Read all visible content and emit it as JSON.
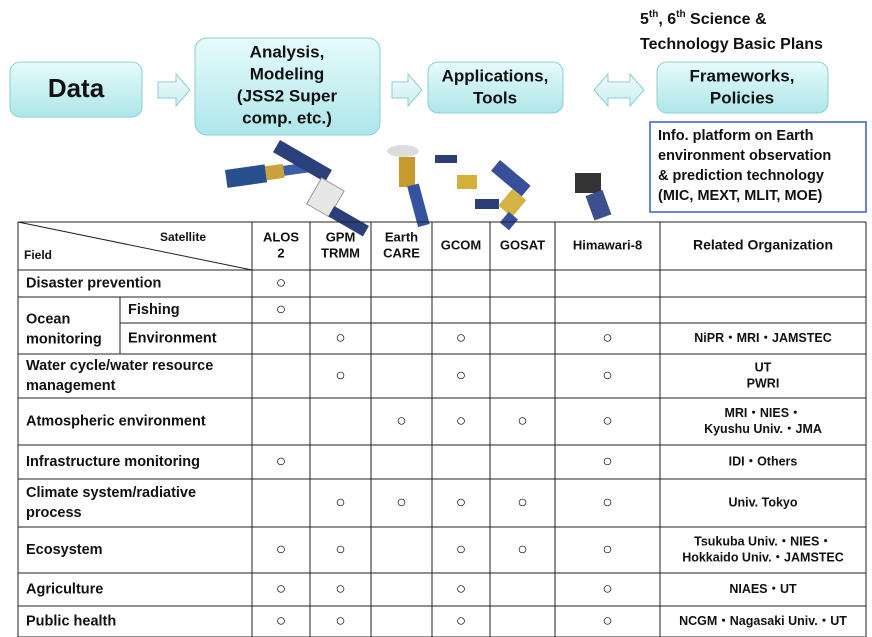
{
  "flow": [
    {
      "lines": [
        "Data"
      ]
    },
    {
      "lines": [
        "Analysis,",
        "Modeling",
        "(JSS2 Super",
        "comp. etc.)"
      ]
    },
    {
      "lines": [
        "Applications,",
        "Tools"
      ]
    },
    {
      "lines": [
        "Frameworks,",
        "Policies"
      ]
    }
  ],
  "plans": {
    "parts": [
      "5",
      "th",
      ", 6",
      "th",
      " Science &"
    ],
    "line2": "Technology Basic Plans"
  },
  "platform": {
    "lines": [
      "Info. platform on Earth",
      "environment observation",
      "& prediction technology",
      "(MIC, MEXT, MLIT, MOE)"
    ]
  },
  "table": {
    "header": {
      "satellite": "Satellite",
      "field": "Field",
      "columns": [
        [
          "ALOS",
          "2"
        ],
        [
          "GPM",
          "TRMM"
        ],
        [
          "Earth",
          "CARE"
        ],
        [
          "GCOM"
        ],
        [
          "GOSAT"
        ],
        [
          "Himawari-8"
        ]
      ],
      "org": "Related Organization"
    },
    "rows": [
      {
        "field": [
          "Disaster prevention"
        ],
        "marks": [
          "○",
          null,
          null,
          null,
          null,
          null
        ],
        "org": null
      },
      {
        "field": [
          "Ocean",
          "monitoring"
        ],
        "subrows": [
          {
            "subfield": "Fishing",
            "marks": [
              "○",
              null,
              null,
              null,
              null,
              null
            ],
            "org": null
          },
          {
            "subfield": "Environment",
            "marks": [
              null,
              "○",
              null,
              "○",
              null,
              "○"
            ],
            "org": [
              "NiPR・MRI・JAMSTEC"
            ]
          }
        ]
      },
      {
        "field": [
          "Water cycle/water resource",
          "management"
        ],
        "marks": [
          null,
          "○",
          null,
          "○",
          null,
          "○"
        ],
        "org": [
          "UT",
          "PWRI"
        ]
      },
      {
        "field": [
          "Atmospheric environment"
        ],
        "marks": [
          null,
          null,
          "○",
          "○",
          "○",
          "○"
        ],
        "org": [
          "MRI・NIES・",
          "Kyushu Univ.・JMA"
        ]
      },
      {
        "field": [
          "Infrastructure monitoring"
        ],
        "marks": [
          "○",
          null,
          null,
          null,
          null,
          "○"
        ],
        "org": [
          "IDI・Others"
        ]
      },
      {
        "field": [
          "Climate system/radiative",
          "process"
        ],
        "marks": [
          null,
          "○",
          "○",
          "○",
          "○",
          "○"
        ],
        "org": [
          "Univ. Tokyo"
        ]
      },
      {
        "field": [
          "Ecosystem"
        ],
        "marks": [
          "○",
          "○",
          null,
          "○",
          "○",
          "○"
        ],
        "org": [
          "Tsukuba Univ.・NIES・",
          "Hokkaido Univ.・JAMSTEC"
        ]
      },
      {
        "field": [
          "Agriculture"
        ],
        "marks": [
          "○",
          "○",
          null,
          "○",
          null,
          "○"
        ],
        "org": [
          "NIAES・UT"
        ]
      },
      {
        "field": [
          "Public health"
        ],
        "marks": [
          "○",
          "○",
          null,
          "○",
          null,
          "○"
        ],
        "org": [
          "NCGM・Nagasaki Univ.・UT"
        ]
      }
    ]
  }
}
